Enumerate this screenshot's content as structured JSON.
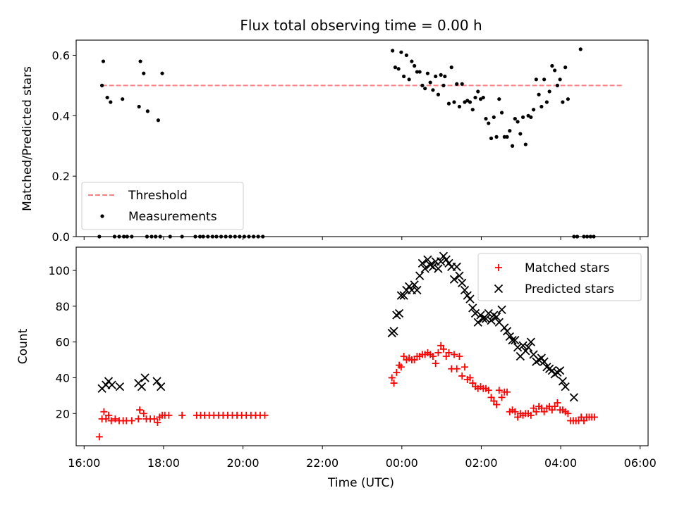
{
  "chart_data": [
    {
      "type": "scatter",
      "title": "Flux total observing time = 0.00 h",
      "ylabel": "Matched/Predicted stars",
      "xlim": [
        "15:48",
        "06:12"
      ],
      "ylim": [
        0,
        0.65
      ],
      "yticks": [
        "0.0",
        "0.2",
        "0.4",
        "0.6"
      ],
      "grid": false,
      "legend_loc": "lower-left",
      "legend": {
        "threshold": "Threshold",
        "measurements": "Measurements"
      },
      "threshold": {
        "value": 0.5,
        "start": "16:27",
        "end": "05:35",
        "color": "#ff7f7f"
      },
      "measurements": [
        [
          "16:23",
          0.0
        ],
        [
          "16:27",
          0.5
        ],
        [
          "16:29",
          0.58
        ],
        [
          "16:35",
          0.46
        ],
        [
          "16:40",
          0.445
        ],
        [
          "16:46",
          0.0
        ],
        [
          "16:53",
          0.0
        ],
        [
          "16:58",
          0.455
        ],
        [
          "17:00",
          0.0
        ],
        [
          "17:05",
          0.0
        ],
        [
          "17:12",
          0.0
        ],
        [
          "17:23",
          0.43
        ],
        [
          "17:25",
          0.58
        ],
        [
          "17:30",
          0.54
        ],
        [
          "17:35",
          0.0
        ],
        [
          "17:36",
          0.415
        ],
        [
          "17:42",
          0.0
        ],
        [
          "17:48",
          0.0
        ],
        [
          "17:52",
          0.385
        ],
        [
          "17:55",
          0.0
        ],
        [
          "17:58",
          0.54
        ],
        [
          "18:10",
          0.0
        ],
        [
          "18:28",
          0.0
        ],
        [
          "18:48",
          0.0
        ],
        [
          "18:55",
          0.0
        ],
        [
          "19:00",
          0.0
        ],
        [
          "19:07",
          0.0
        ],
        [
          "19:14",
          0.0
        ],
        [
          "19:20",
          0.0
        ],
        [
          "19:27",
          0.0
        ],
        [
          "19:34",
          0.0
        ],
        [
          "19:41",
          0.0
        ],
        [
          "19:48",
          0.0
        ],
        [
          "19:55",
          0.0
        ],
        [
          "20:02",
          0.0
        ],
        [
          "20:09",
          0.0
        ],
        [
          "20:16",
          0.0
        ],
        [
          "20:23",
          0.0
        ],
        [
          "20:30",
          0.0
        ],
        [
          "23:46",
          0.615
        ],
        [
          "23:50",
          0.56
        ],
        [
          "23:55",
          0.555
        ],
        [
          "23:59",
          0.61
        ],
        [
          "00:03",
          0.53
        ],
        [
          "00:07",
          0.6
        ],
        [
          "00:11",
          0.52
        ],
        [
          "00:15",
          0.58
        ],
        [
          "00:19",
          0.565
        ],
        [
          "00:23",
          0.545
        ],
        [
          "00:27",
          0.545
        ],
        [
          "00:31",
          0.5
        ],
        [
          "00:35",
          0.49
        ],
        [
          "00:39",
          0.54
        ],
        [
          "00:43",
          0.51
        ],
        [
          "00:47",
          0.485
        ],
        [
          "00:51",
          0.53
        ],
        [
          "00:55",
          0.47
        ],
        [
          "00:59",
          0.535
        ],
        [
          "01:03",
          0.5
        ],
        [
          "01:05",
          0.53
        ],
        [
          "01:11",
          0.44
        ],
        [
          "01:15",
          0.56
        ],
        [
          "01:19",
          0.445
        ],
        [
          "01:23",
          0.505
        ],
        [
          "01:27",
          0.43
        ],
        [
          "01:31",
          0.505
        ],
        [
          "01:35",
          0.445
        ],
        [
          "01:39",
          0.45
        ],
        [
          "01:43",
          0.445
        ],
        [
          "01:47",
          0.42
        ],
        [
          "01:51",
          0.46
        ],
        [
          "01:55",
          0.48
        ],
        [
          "01:59",
          0.455
        ],
        [
          "02:03",
          0.46
        ],
        [
          "02:07",
          0.39
        ],
        [
          "02:11",
          0.375
        ],
        [
          "02:15",
          0.325
        ],
        [
          "02:19",
          0.395
        ],
        [
          "02:23",
          0.33
        ],
        [
          "02:27",
          0.455
        ],
        [
          "02:31",
          0.41
        ],
        [
          "02:35",
          0.33
        ],
        [
          "02:39",
          0.33
        ],
        [
          "02:43",
          0.35
        ],
        [
          "02:47",
          0.3
        ],
        [
          "02:51",
          0.39
        ],
        [
          "02:55",
          0.38
        ],
        [
          "02:59",
          0.34
        ],
        [
          "03:03",
          0.395
        ],
        [
          "03:07",
          0.305
        ],
        [
          "03:11",
          0.4
        ],
        [
          "03:15",
          0.395
        ],
        [
          "03:19",
          0.42
        ],
        [
          "03:23",
          0.52
        ],
        [
          "03:27",
          0.47
        ],
        [
          "03:31",
          0.43
        ],
        [
          "03:35",
          0.52
        ],
        [
          "03:39",
          0.445
        ],
        [
          "03:43",
          0.48
        ],
        [
          "03:47",
          0.565
        ],
        [
          "03:51",
          0.55
        ],
        [
          "03:55",
          0.5
        ],
        [
          "03:59",
          0.52
        ],
        [
          "04:03",
          0.445
        ],
        [
          "04:07",
          0.56
        ],
        [
          "04:11",
          0.455
        ],
        [
          "04:20",
          0.0
        ],
        [
          "04:25",
          0.0
        ],
        [
          "04:30",
          0.62
        ],
        [
          "04:35",
          0.0
        ],
        [
          "04:40",
          0.0
        ],
        [
          "04:45",
          0.0
        ],
        [
          "04:50",
          0.0
        ]
      ]
    },
    {
      "type": "scatter",
      "xlabel": "Time (UTC)",
      "ylabel": "Count",
      "xlim": [
        "15:48",
        "06:12"
      ],
      "ylim": [
        2,
        113
      ],
      "xticks": [
        "16:00",
        "18:00",
        "20:00",
        "22:00",
        "00:00",
        "02:00",
        "04:00",
        "06:00"
      ],
      "yticks": [
        "20",
        "40",
        "60",
        "80",
        "100"
      ],
      "grid": false,
      "legend_loc": "top-right",
      "legend": {
        "matched": "Matched stars",
        "predicted": "Predicted stars"
      },
      "matched_color": "#ff0000",
      "predicted_color": "#000000",
      "matched": [
        [
          "16:23",
          7
        ],
        [
          "16:27",
          17
        ],
        [
          "16:30",
          21
        ],
        [
          "16:33",
          17
        ],
        [
          "16:37",
          19
        ],
        [
          "16:41",
          16
        ],
        [
          "16:47",
          17
        ],
        [
          "16:53",
          16
        ],
        [
          "16:59",
          16
        ],
        [
          "17:04",
          16
        ],
        [
          "17:12",
          16
        ],
        [
          "17:22",
          17
        ],
        [
          "17:24",
          22
        ],
        [
          "17:30",
          20
        ],
        [
          "17:34",
          17
        ],
        [
          "17:40",
          17
        ],
        [
          "17:46",
          17
        ],
        [
          "17:51",
          15
        ],
        [
          "17:54",
          18
        ],
        [
          "17:58",
          19
        ],
        [
          "18:02",
          19
        ],
        [
          "18:08",
          19
        ],
        [
          "18:28",
          19
        ],
        [
          "18:50",
          19
        ],
        [
          "18:56",
          19
        ],
        [
          "19:02",
          19
        ],
        [
          "19:09",
          19
        ],
        [
          "19:16",
          19
        ],
        [
          "19:23",
          19
        ],
        [
          "19:30",
          19
        ],
        [
          "19:37",
          19
        ],
        [
          "19:44",
          19
        ],
        [
          "19:51",
          19
        ],
        [
          "19:58",
          19
        ],
        [
          "20:05",
          19
        ],
        [
          "20:12",
          19
        ],
        [
          "20:19",
          19
        ],
        [
          "20:26",
          19
        ],
        [
          "20:33",
          19
        ],
        [
          "23:45",
          40
        ],
        [
          "23:48",
          37
        ],
        [
          "23:52",
          43
        ],
        [
          "23:56",
          47
        ],
        [
          "23:59",
          46
        ],
        [
          "00:03",
          52
        ],
        [
          "00:07",
          50
        ],
        [
          "00:11",
          51
        ],
        [
          "00:15",
          50
        ],
        [
          "00:19",
          50
        ],
        [
          "00:23",
          52
        ],
        [
          "00:27",
          52
        ],
        [
          "00:31",
          53
        ],
        [
          "00:35",
          53
        ],
        [
          "00:39",
          54
        ],
        [
          "00:43",
          53
        ],
        [
          "00:47",
          52
        ],
        [
          "00:51",
          48
        ],
        [
          "00:55",
          54
        ],
        [
          "00:59",
          58
        ],
        [
          "01:03",
          56
        ],
        [
          "01:07",
          52
        ],
        [
          "01:11",
          54
        ],
        [
          "01:15",
          45
        ],
        [
          "01:19",
          53
        ],
        [
          "01:23",
          45
        ],
        [
          "01:27",
          52
        ],
        [
          "01:31",
          41
        ],
        [
          "01:35",
          46
        ],
        [
          "01:39",
          39
        ],
        [
          "01:43",
          40
        ],
        [
          "01:47",
          37
        ],
        [
          "01:51",
          35
        ],
        [
          "01:55",
          34
        ],
        [
          "01:59",
          35
        ],
        [
          "02:03",
          34
        ],
        [
          "02:07",
          34
        ],
        [
          "02:11",
          33
        ],
        [
          "02:15",
          29
        ],
        [
          "02:19",
          27
        ],
        [
          "02:23",
          25
        ],
        [
          "02:27",
          33
        ],
        [
          "02:31",
          29
        ],
        [
          "02:35",
          32
        ],
        [
          "02:39",
          32
        ],
        [
          "02:43",
          21
        ],
        [
          "02:47",
          22
        ],
        [
          "02:51",
          21
        ],
        [
          "02:55",
          18
        ],
        [
          "02:59",
          20
        ],
        [
          "03:03",
          19
        ],
        [
          "03:07",
          20
        ],
        [
          "03:11",
          20
        ],
        [
          "03:15",
          19
        ],
        [
          "03:19",
          23
        ],
        [
          "03:23",
          21
        ],
        [
          "03:27",
          24
        ],
        [
          "03:31",
          23
        ],
        [
          "03:35",
          21
        ],
        [
          "03:39",
          23
        ],
        [
          "03:43",
          24
        ],
        [
          "03:47",
          22
        ],
        [
          "03:51",
          24
        ],
        [
          "03:55",
          26
        ],
        [
          "03:59",
          22
        ],
        [
          "04:03",
          22
        ],
        [
          "04:07",
          21
        ],
        [
          "04:11",
          20
        ],
        [
          "04:15",
          16
        ],
        [
          "04:19",
          16
        ],
        [
          "04:23",
          16
        ],
        [
          "04:27",
          16
        ],
        [
          "04:31",
          18
        ],
        [
          "04:35",
          16
        ],
        [
          "04:39",
          18
        ],
        [
          "04:43",
          18
        ],
        [
          "04:47",
          18
        ],
        [
          "04:51",
          18
        ]
      ],
      "predicted": [
        [
          "16:27",
          34
        ],
        [
          "16:33",
          36
        ],
        [
          "16:37",
          38
        ],
        [
          "16:42",
          36
        ],
        [
          "16:54",
          35
        ],
        [
          "17:22",
          37
        ],
        [
          "17:27",
          35
        ],
        [
          "17:32",
          40
        ],
        [
          "17:50",
          38
        ],
        [
          "17:56",
          35
        ],
        [
          "23:45",
          65
        ],
        [
          "23:48",
          66
        ],
        [
          "23:52",
          75
        ],
        [
          "23:56",
          76
        ],
        [
          "23:59",
          86
        ],
        [
          "00:03",
          86
        ],
        [
          "00:07",
          89
        ],
        [
          "00:11",
          91
        ],
        [
          "00:15",
          89
        ],
        [
          "00:19",
          92
        ],
        [
          "00:23",
          89
        ],
        [
          "00:27",
          97
        ],
        [
          "00:31",
          104
        ],
        [
          "00:35",
          101
        ],
        [
          "00:39",
          106
        ],
        [
          "00:43",
          103
        ],
        [
          "00:47",
          102
        ],
        [
          "00:51",
          105
        ],
        [
          "00:55",
          101
        ],
        [
          "00:59",
          105
        ],
        [
          "01:03",
          108
        ],
        [
          "01:07",
          106
        ],
        [
          "01:11",
          104
        ],
        [
          "01:15",
          102
        ],
        [
          "01:19",
          95
        ],
        [
          "01:23",
          102
        ],
        [
          "01:27",
          97
        ],
        [
          "01:31",
          93
        ],
        [
          "01:35",
          89
        ],
        [
          "01:39",
          86
        ],
        [
          "01:43",
          84
        ],
        [
          "01:47",
          79
        ],
        [
          "01:51",
          76
        ],
        [
          "01:55",
          71
        ],
        [
          "01:59",
          75
        ],
        [
          "02:03",
          73
        ],
        [
          "02:07",
          73
        ],
        [
          "02:11",
          76
        ],
        [
          "02:15",
          72
        ],
        [
          "02:19",
          75
        ],
        [
          "02:23",
          74
        ],
        [
          "02:27",
          71
        ],
        [
          "02:31",
          78
        ],
        [
          "02:35",
          68
        ],
        [
          "02:39",
          66
        ],
        [
          "02:43",
          63
        ],
        [
          "02:47",
          61
        ],
        [
          "02:51",
          61
        ],
        [
          "02:55",
          57
        ],
        [
          "02:59",
          52
        ],
        [
          "03:03",
          58
        ],
        [
          "03:07",
          55
        ],
        [
          "03:11",
          57
        ],
        [
          "03:15",
          60
        ],
        [
          "03:19",
          53
        ],
        [
          "03:23",
          49
        ],
        [
          "03:27",
          50
        ],
        [
          "03:31",
          51
        ],
        [
          "03:35",
          49
        ],
        [
          "03:39",
          46
        ],
        [
          "03:43",
          45
        ],
        [
          "03:47",
          44
        ],
        [
          "03:51",
          42
        ],
        [
          "03:55",
          43
        ],
        [
          "03:59",
          44
        ],
        [
          "04:03",
          38
        ],
        [
          "04:07",
          35
        ],
        [
          "04:20",
          29
        ]
      ]
    }
  ]
}
